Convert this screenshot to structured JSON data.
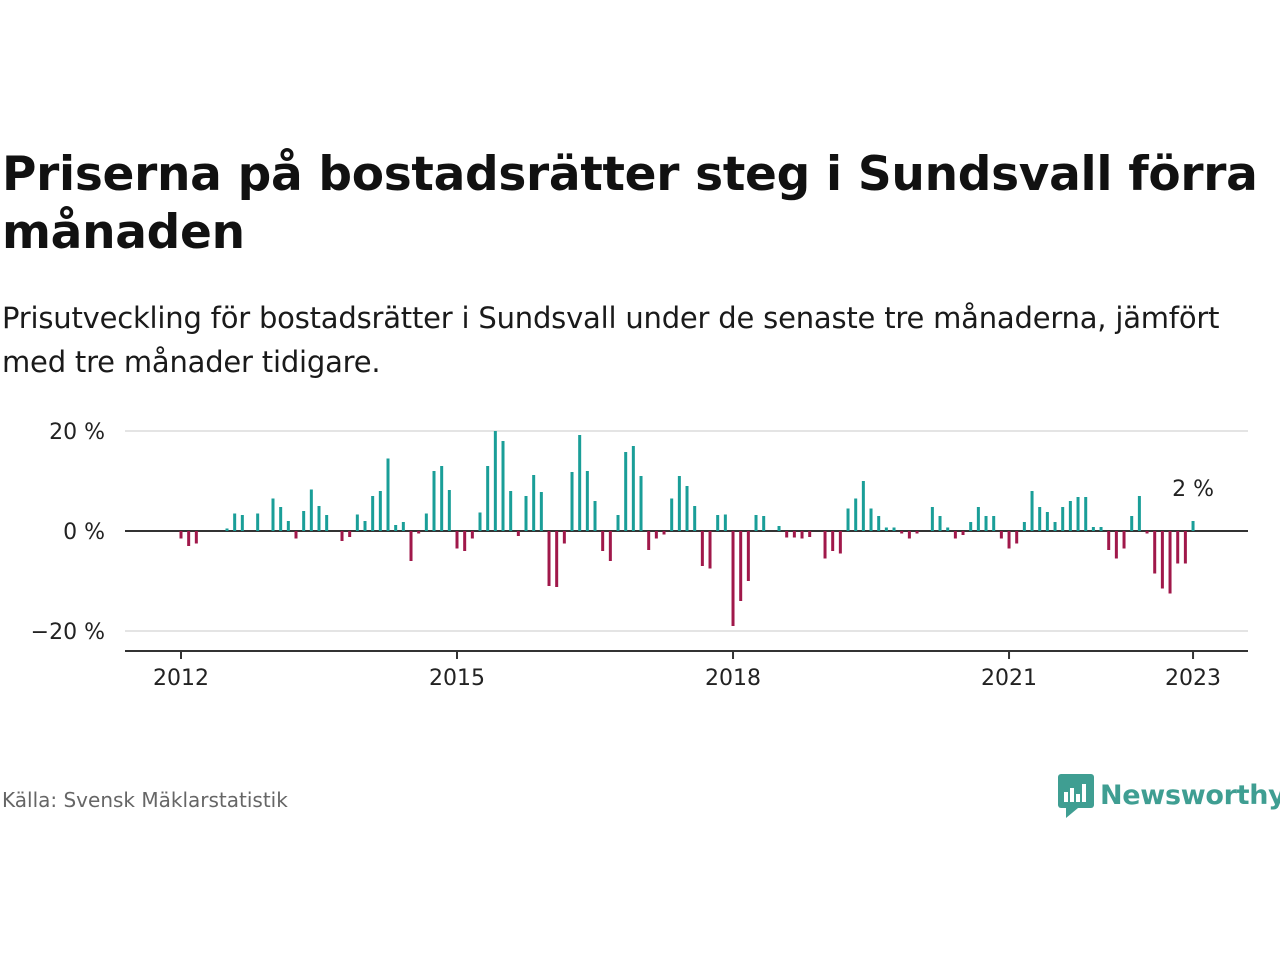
{
  "title": "Priserna på bostadsrätter steg i Sundsvall förra månaden",
  "subtitle": "Prisutveckling för bostadsrätter i Sundsvall under de senaste tre månaderna, jämfört med tre månader tidigare.",
  "source": "Källa: Svensk Mäklarstatistik",
  "logo": {
    "name": "Newsworthy",
    "icon": "newsworthy-chart-bubble-icon"
  },
  "colors": {
    "positive": "#1a9e98",
    "negative": "#a0184a",
    "brand": "#3f9e92"
  },
  "chart_data": {
    "type": "bar",
    "title": "Priserna på bostadsrätter steg i Sundsvall förra månaden",
    "xlabel": "",
    "ylabel": "",
    "ylim": [
      -22,
      21
    ],
    "y_ticks": [
      {
        "value": 20,
        "label": "20 %"
      },
      {
        "value": 0,
        "label": "0 %"
      },
      {
        "value": -20,
        "label": "−20 %"
      }
    ],
    "x_ticks": [
      "2012",
      "2015",
      "2018",
      "2021",
      "2023"
    ],
    "x_start": "2012-01",
    "grid": true,
    "annotation": {
      "label": "2 %",
      "value": 2
    },
    "values": [
      -1.5,
      -3.0,
      -2.5,
      0,
      0,
      0,
      0.5,
      3.5,
      3.2,
      0,
      3.5,
      0,
      6.5,
      4.8,
      2.0,
      -1.5,
      4.0,
      8.3,
      5.0,
      3.2,
      0,
      -2.0,
      -1.2,
      3.3,
      2.0,
      7.0,
      8.0,
      14.5,
      1.2,
      1.8,
      -6.0,
      -0.5,
      3.5,
      12.0,
      13.0,
      8.2,
      -3.5,
      -4.0,
      -1.5,
      3.7,
      13.0,
      20.0,
      18.0,
      8.0,
      -1.0,
      7.0,
      11.2,
      7.8,
      -11.0,
      -11.2,
      -2.5,
      11.8,
      19.2,
      12.0,
      6.0,
      -4.0,
      -6.0,
      3.2,
      15.8,
      17.0,
      11.0,
      -3.8,
      -1.5,
      -0.7,
      6.5,
      11.0,
      9.0,
      5.0,
      -7.0,
      -7.5,
      3.2,
      3.3,
      -19.0,
      -14.0,
      -10.0,
      3.2,
      3.0,
      0,
      1.0,
      -1.3,
      -1.3,
      -1.5,
      -1.2,
      0,
      -5.5,
      -4.0,
      -4.5,
      4.5,
      6.5,
      10.0,
      4.5,
      3.0,
      0.7,
      0.7,
      -0.5,
      -1.5,
      -0.5,
      0,
      4.8,
      3.0,
      0.7,
      -1.5,
      -0.8,
      1.8,
      4.8,
      3.0,
      3.0,
      -1.5,
      -3.5,
      -2.5,
      1.8,
      8.0,
      4.8,
      3.8,
      1.8,
      4.8,
      6.0,
      6.8,
      6.8,
      0.8,
      0.8,
      -3.8,
      -5.5,
      -3.5,
      3.0,
      7.0,
      -0.5,
      -8.5,
      -11.5,
      -12.5,
      -6.5,
      -6.5,
      2.0
    ]
  }
}
